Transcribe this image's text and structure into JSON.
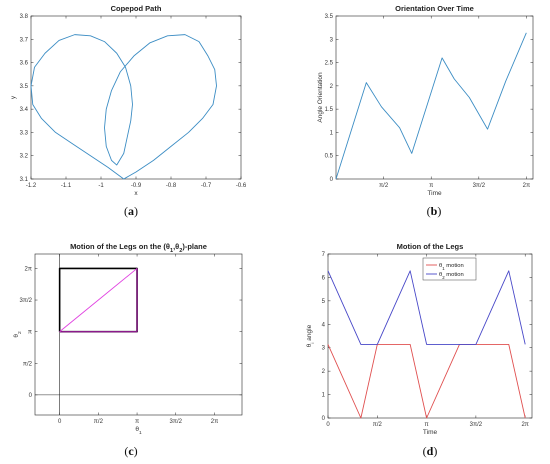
{
  "chart_data": [
    {
      "id": "a",
      "type": "line",
      "title": "Copepod Path",
      "xlabel": "x",
      "ylabel": "y",
      "xlim": [
        -1.2,
        -0.6
      ],
      "ylim": [
        3.1,
        3.8
      ],
      "xticks": [
        -1.2,
        -1.1,
        -1.0,
        -0.9,
        -0.8,
        -0.7,
        -0.6
      ],
      "xtick_labels": [
        "-1.2",
        "-1.1",
        "-1",
        "-0.9",
        "-0.8",
        "-0.7",
        "-0.6"
      ],
      "yticks": [
        3.1,
        3.2,
        3.3,
        3.4,
        3.5,
        3.6,
        3.7,
        3.8
      ],
      "ytick_labels": [
        "3.1",
        "3.2",
        "3.3",
        "3.4",
        "3.5",
        "3.6",
        "3.7",
        "3.8"
      ],
      "color": "#3c8dc4",
      "series": [
        {
          "x": [
            -0.935,
            -0.98,
            -1.03,
            -1.08,
            -1.13,
            -1.17,
            -1.195,
            -1.2,
            -1.19,
            -1.16,
            -1.12,
            -1.075,
            -1.03,
            -0.99,
            -0.955,
            -0.93,
            -0.915,
            -0.91,
            -0.915,
            -0.925,
            -0.935,
            -0.955,
            -0.97,
            -0.985,
            -0.99,
            -0.985,
            -0.97,
            -0.945,
            -0.905,
            -0.86,
            -0.81,
            -0.76,
            -0.72,
            -0.695,
            -0.675,
            -0.67,
            -0.68,
            -0.71,
            -0.75,
            -0.8,
            -0.85,
            -0.9,
            -0.935
          ],
          "y": [
            3.1,
            3.15,
            3.2,
            3.25,
            3.3,
            3.36,
            3.42,
            3.5,
            3.58,
            3.64,
            3.695,
            3.72,
            3.715,
            3.69,
            3.64,
            3.58,
            3.5,
            3.42,
            3.35,
            3.28,
            3.21,
            3.16,
            3.18,
            3.24,
            3.32,
            3.4,
            3.48,
            3.56,
            3.63,
            3.685,
            3.715,
            3.72,
            3.69,
            3.63,
            3.57,
            3.5,
            3.42,
            3.36,
            3.3,
            3.24,
            3.18,
            3.13,
            3.1
          ]
        }
      ],
      "caption": "(a)"
    },
    {
      "id": "b",
      "type": "line",
      "title": "Orientation Over Time",
      "xlabel": "Time",
      "ylabel": "Angle Orientation",
      "xlim": [
        0,
        6.5
      ],
      "ylim": [
        0,
        3.5
      ],
      "xticks": [
        1.5708,
        3.1416,
        4.7124,
        6.2832
      ],
      "xtick_labels": [
        "π/2",
        "π",
        "3π/2",
        "2π"
      ],
      "yticks": [
        0,
        0.5,
        1,
        1.5,
        2,
        2.5,
        3,
        3.5
      ],
      "ytick_labels": [
        "0",
        "0.5",
        "1",
        "1.5",
        "2",
        "2.5",
        "3",
        "3.5"
      ],
      "color": "#3c8dc4",
      "series": [
        {
          "x": [
            0,
            1.0,
            1.5,
            2.1,
            2.5,
            3.5,
            3.9,
            4.4,
            5.0,
            5.6,
            6.28
          ],
          "y": [
            0,
            2.07,
            1.55,
            1.1,
            0.55,
            2.6,
            2.15,
            1.75,
            1.07,
            2.1,
            3.14
          ]
        }
      ],
      "caption": "(b)"
    },
    {
      "id": "c",
      "type": "line",
      "title": "Motion of the Legs on the (θ",
      "title_mid": "1",
      "title_sep": ",θ",
      "title_mid2": "2",
      "title_end": ")-plane",
      "xlabel": "θ",
      "xlabel_sub": "1",
      "ylabel": "θ",
      "ylabel_sub": "2",
      "xlim": [
        -1.0,
        7.4
      ],
      "ylim": [
        -1.0,
        7.0
      ],
      "xticks": [
        0,
        1.5708,
        3.1416,
        4.7124,
        6.2832
      ],
      "xtick_labels": [
        "0",
        "π/2",
        "π",
        "3π/2",
        "2π"
      ],
      "yticks": [
        0,
        1.5708,
        3.1416,
        4.7124,
        6.2832
      ],
      "ytick_labels": [
        "0",
        "π/2",
        "π",
        "3π/2",
        "2π"
      ],
      "series": [
        {
          "name": "square",
          "color": "#000000",
          "x": [
            0,
            3.1416,
            3.1416,
            0,
            0
          ],
          "y": [
            3.1416,
            3.1416,
            6.2832,
            6.2832,
            3.1416
          ]
        },
        {
          "name": "path-bottom",
          "color": "#8b1a8b",
          "x": [
            0,
            3.1416
          ],
          "y": [
            3.1416,
            3.1416
          ]
        },
        {
          "name": "path-right",
          "color": "#8b1a8b",
          "x": [
            3.1416,
            3.1416
          ],
          "y": [
            3.1416,
            6.2832
          ]
        },
        {
          "name": "path-diagonal",
          "color": "#e040e0",
          "x": [
            0,
            3.1416
          ],
          "y": [
            3.1416,
            6.2832
          ]
        }
      ],
      "caption": "(c)"
    },
    {
      "id": "d",
      "type": "line",
      "title": "Motion of the Legs",
      "xlabel": "Time",
      "ylabel": "θ",
      "ylabel_sub": "i",
      "ylabel_end": " angle",
      "xlim": [
        0,
        6.5
      ],
      "ylim": [
        0,
        7
      ],
      "xticks": [
        0,
        1.5708,
        3.1416,
        4.7124,
        6.2832
      ],
      "xtick_labels": [
        "0",
        "π/2",
        "π",
        "3π/2",
        "2π"
      ],
      "yticks": [
        0,
        1,
        2,
        3,
        4,
        5,
        6,
        7
      ],
      "ytick_labels": [
        "0",
        "1",
        "2",
        "3",
        "4",
        "5",
        "6",
        "7"
      ],
      "legend": {
        "position": "top-center"
      },
      "series": [
        {
          "name": "θ",
          "name_sub": "1",
          "name_end": " motion",
          "color": "#e05050",
          "x": [
            0,
            1.0472,
            1.5708,
            2.618,
            3.1416,
            4.1888,
            4.7124,
            5.7596,
            6.2832
          ],
          "y": [
            3.1416,
            0,
            3.1416,
            3.1416,
            0,
            3.1416,
            3.1416,
            3.1416,
            0
          ]
        },
        {
          "name": "θ",
          "name_sub": "2",
          "name_end": " motion",
          "color": "#4848c8",
          "x": [
            0,
            1.0472,
            1.5708,
            2.618,
            3.1416,
            4.1888,
            4.7124,
            5.7596,
            6.2832
          ],
          "y": [
            6.2832,
            3.1416,
            3.1416,
            6.2832,
            3.1416,
            3.1416,
            3.1416,
            6.2832,
            3.1416
          ]
        }
      ],
      "caption": "(d)"
    }
  ]
}
